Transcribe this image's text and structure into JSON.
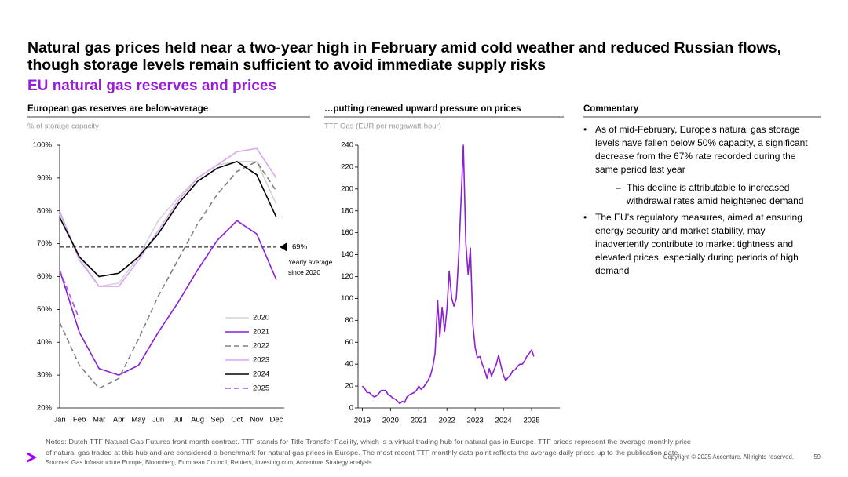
{
  "title": [
    "Natural gas prices held near a two-year high in February amid cold weather and reduced Russian flows,",
    "though storage levels remain sufficient to avoid immediate supply risks"
  ],
  "subtitle": "EU natural gas reserves and prices",
  "chart_data": [
    {
      "type": "line",
      "title": "European gas reserves are below-average",
      "y_label": "% of storage capacity",
      "categories": [
        "Jan",
        "Feb",
        "Mar",
        "Apr",
        "May",
        "Jun",
        "Jul",
        "Aug",
        "Sep",
        "Oct",
        "Nov",
        "Dec"
      ],
      "series": [
        {
          "name": "2020",
          "color": "#d4d4d4",
          "dash": false,
          "values": [
            79,
            66,
            57,
            58,
            66,
            77,
            84,
            90,
            94,
            95,
            95,
            82
          ]
        },
        {
          "name": "2021",
          "color": "#8a1fd6",
          "dash": false,
          "values": [
            62,
            43,
            32,
            30,
            33,
            43,
            52,
            62,
            71,
            77,
            73,
            59
          ]
        },
        {
          "name": "2022",
          "color": "#808080",
          "dash": true,
          "values": [
            46,
            33,
            26,
            29,
            41,
            54,
            65,
            76,
            85,
            92,
            95,
            86
          ]
        },
        {
          "name": "2023",
          "color": "#d9a6f2",
          "dash": false,
          "values": [
            80,
            65,
            57,
            57,
            65,
            74,
            83,
            90,
            94,
            98,
            99,
            90
          ]
        },
        {
          "name": "2024",
          "color": "#000000",
          "dash": false,
          "values": [
            78,
            66,
            60,
            61,
            66,
            73,
            82,
            89,
            93,
            95,
            91,
            78
          ]
        },
        {
          "name": "2025",
          "color": "#a455e6",
          "dash": true,
          "values": [
            62,
            47,
            null,
            null,
            null,
            null,
            null,
            null,
            null,
            null,
            null,
            null
          ]
        }
      ],
      "ylim": [
        20,
        100
      ],
      "yticks": [
        {
          "value": 20,
          "label": "20%"
        },
        {
          "value": 30,
          "label": "30%"
        },
        {
          "value": 40,
          "label": "40%"
        },
        {
          "value": 50,
          "label": "50%"
        },
        {
          "value": 60,
          "label": "60%"
        },
        {
          "value": 70,
          "label": "70%"
        },
        {
          "value": 80,
          "label": "80%"
        },
        {
          "value": 90,
          "label": "90%"
        },
        {
          "value": 100,
          "label": "100%"
        }
      ],
      "reference_line": {
        "value": 69,
        "label": "69%",
        "note": "Yearly average since 2020"
      },
      "legend": "lower right"
    },
    {
      "type": "line",
      "title": "…putting renewed upward pressure on prices",
      "y_label": "TTF Gas (EUR per megawatt-hour)",
      "series": [
        {
          "name": "TTF",
          "color": "#8a1fd6",
          "x": [
            2019,
            2019.08,
            2019.17,
            2019.25,
            2019.33,
            2019.42,
            2019.5,
            2019.58,
            2019.67,
            2019.75,
            2019.83,
            2019.92,
            2020,
            2020.08,
            2020.17,
            2020.25,
            2020.33,
            2020.42,
            2020.5,
            2020.58,
            2020.67,
            2020.75,
            2020.83,
            2020.92,
            2021,
            2021.08,
            2021.17,
            2021.25,
            2021.33,
            2021.42,
            2021.5,
            2021.58,
            2021.67,
            2021.75,
            2021.83,
            2021.92,
            2022,
            2022.08,
            2022.17,
            2022.25,
            2022.33,
            2022.42,
            2022.5,
            2022.58,
            2022.67,
            2022.75,
            2022.83,
            2022.92,
            2023,
            2023.08,
            2023.17,
            2023.25,
            2023.33,
            2023.42,
            2023.5,
            2023.58,
            2023.67,
            2023.75,
            2023.83,
            2023.92,
            2024,
            2024.08,
            2024.17,
            2024.25,
            2024.33,
            2024.42,
            2024.5,
            2024.58,
            2024.67,
            2024.75,
            2024.83,
            2024.92,
            2025,
            2025.08
          ],
          "values": [
            20,
            18,
            14,
            14,
            12,
            10,
            11,
            13,
            16,
            16,
            16,
            12,
            11,
            9,
            8,
            6,
            4,
            6,
            5,
            10,
            12,
            13,
            14,
            16,
            20,
            17,
            19,
            22,
            25,
            30,
            38,
            50,
            98,
            65,
            92,
            70,
            90,
            125,
            100,
            93,
            100,
            140,
            190,
            240,
            150,
            122,
            146,
            76,
            55,
            46,
            47,
            40,
            35,
            27,
            36,
            29,
            35,
            40,
            48,
            38,
            30,
            25,
            28,
            30,
            34,
            35,
            38,
            40,
            40,
            43,
            47,
            50,
            53,
            47
          ]
        }
      ],
      "xlim": [
        2018.85,
        2026
      ],
      "xticks": [
        2019,
        2020,
        2021,
        2022,
        2023,
        2024,
        2025
      ],
      "ylim": [
        0,
        240
      ],
      "yticks": [
        0,
        20,
        40,
        60,
        80,
        100,
        120,
        140,
        160,
        180,
        200,
        220,
        240
      ]
    }
  ],
  "commentary": {
    "title": "Commentary",
    "bullets": [
      {
        "text": "As of mid-February, Europe's natural gas storage levels have fallen below 50% capacity, a significant decrease from the 67% rate recorded during the same period last year",
        "sub": [
          "This decline is attributable to increased withdrawal rates amid heightened demand"
        ]
      },
      {
        "text": "The EU’s regulatory measures, aimed at ensuring energy security and market stability, may inadvertently contribute to market tightness and elevated prices, especially during periods of high demand",
        "sub": []
      }
    ]
  },
  "notes": [
    "Notes: Dutch TTF Natural Gas Futures front-month contract. TTF stands for Title Transfer Facility, which is a virtual trading hub for natural gas in Europe.  TTF prices represent the average monthly price",
    "of natural gas traded at this hub and are considered a benchmark for natural gas prices in Europe. The most recent TTF monthly data point reflects the average daily prices up to the publication date."
  ],
  "sources": "Sources: Gas Infrastructure Europe, Bloomberg, European Council, Reuters, Investing.com, Accenture Strategy analysis",
  "copyright": "Copyright © 2025 Accenture. All rights reserved.",
  "page_number": "59"
}
